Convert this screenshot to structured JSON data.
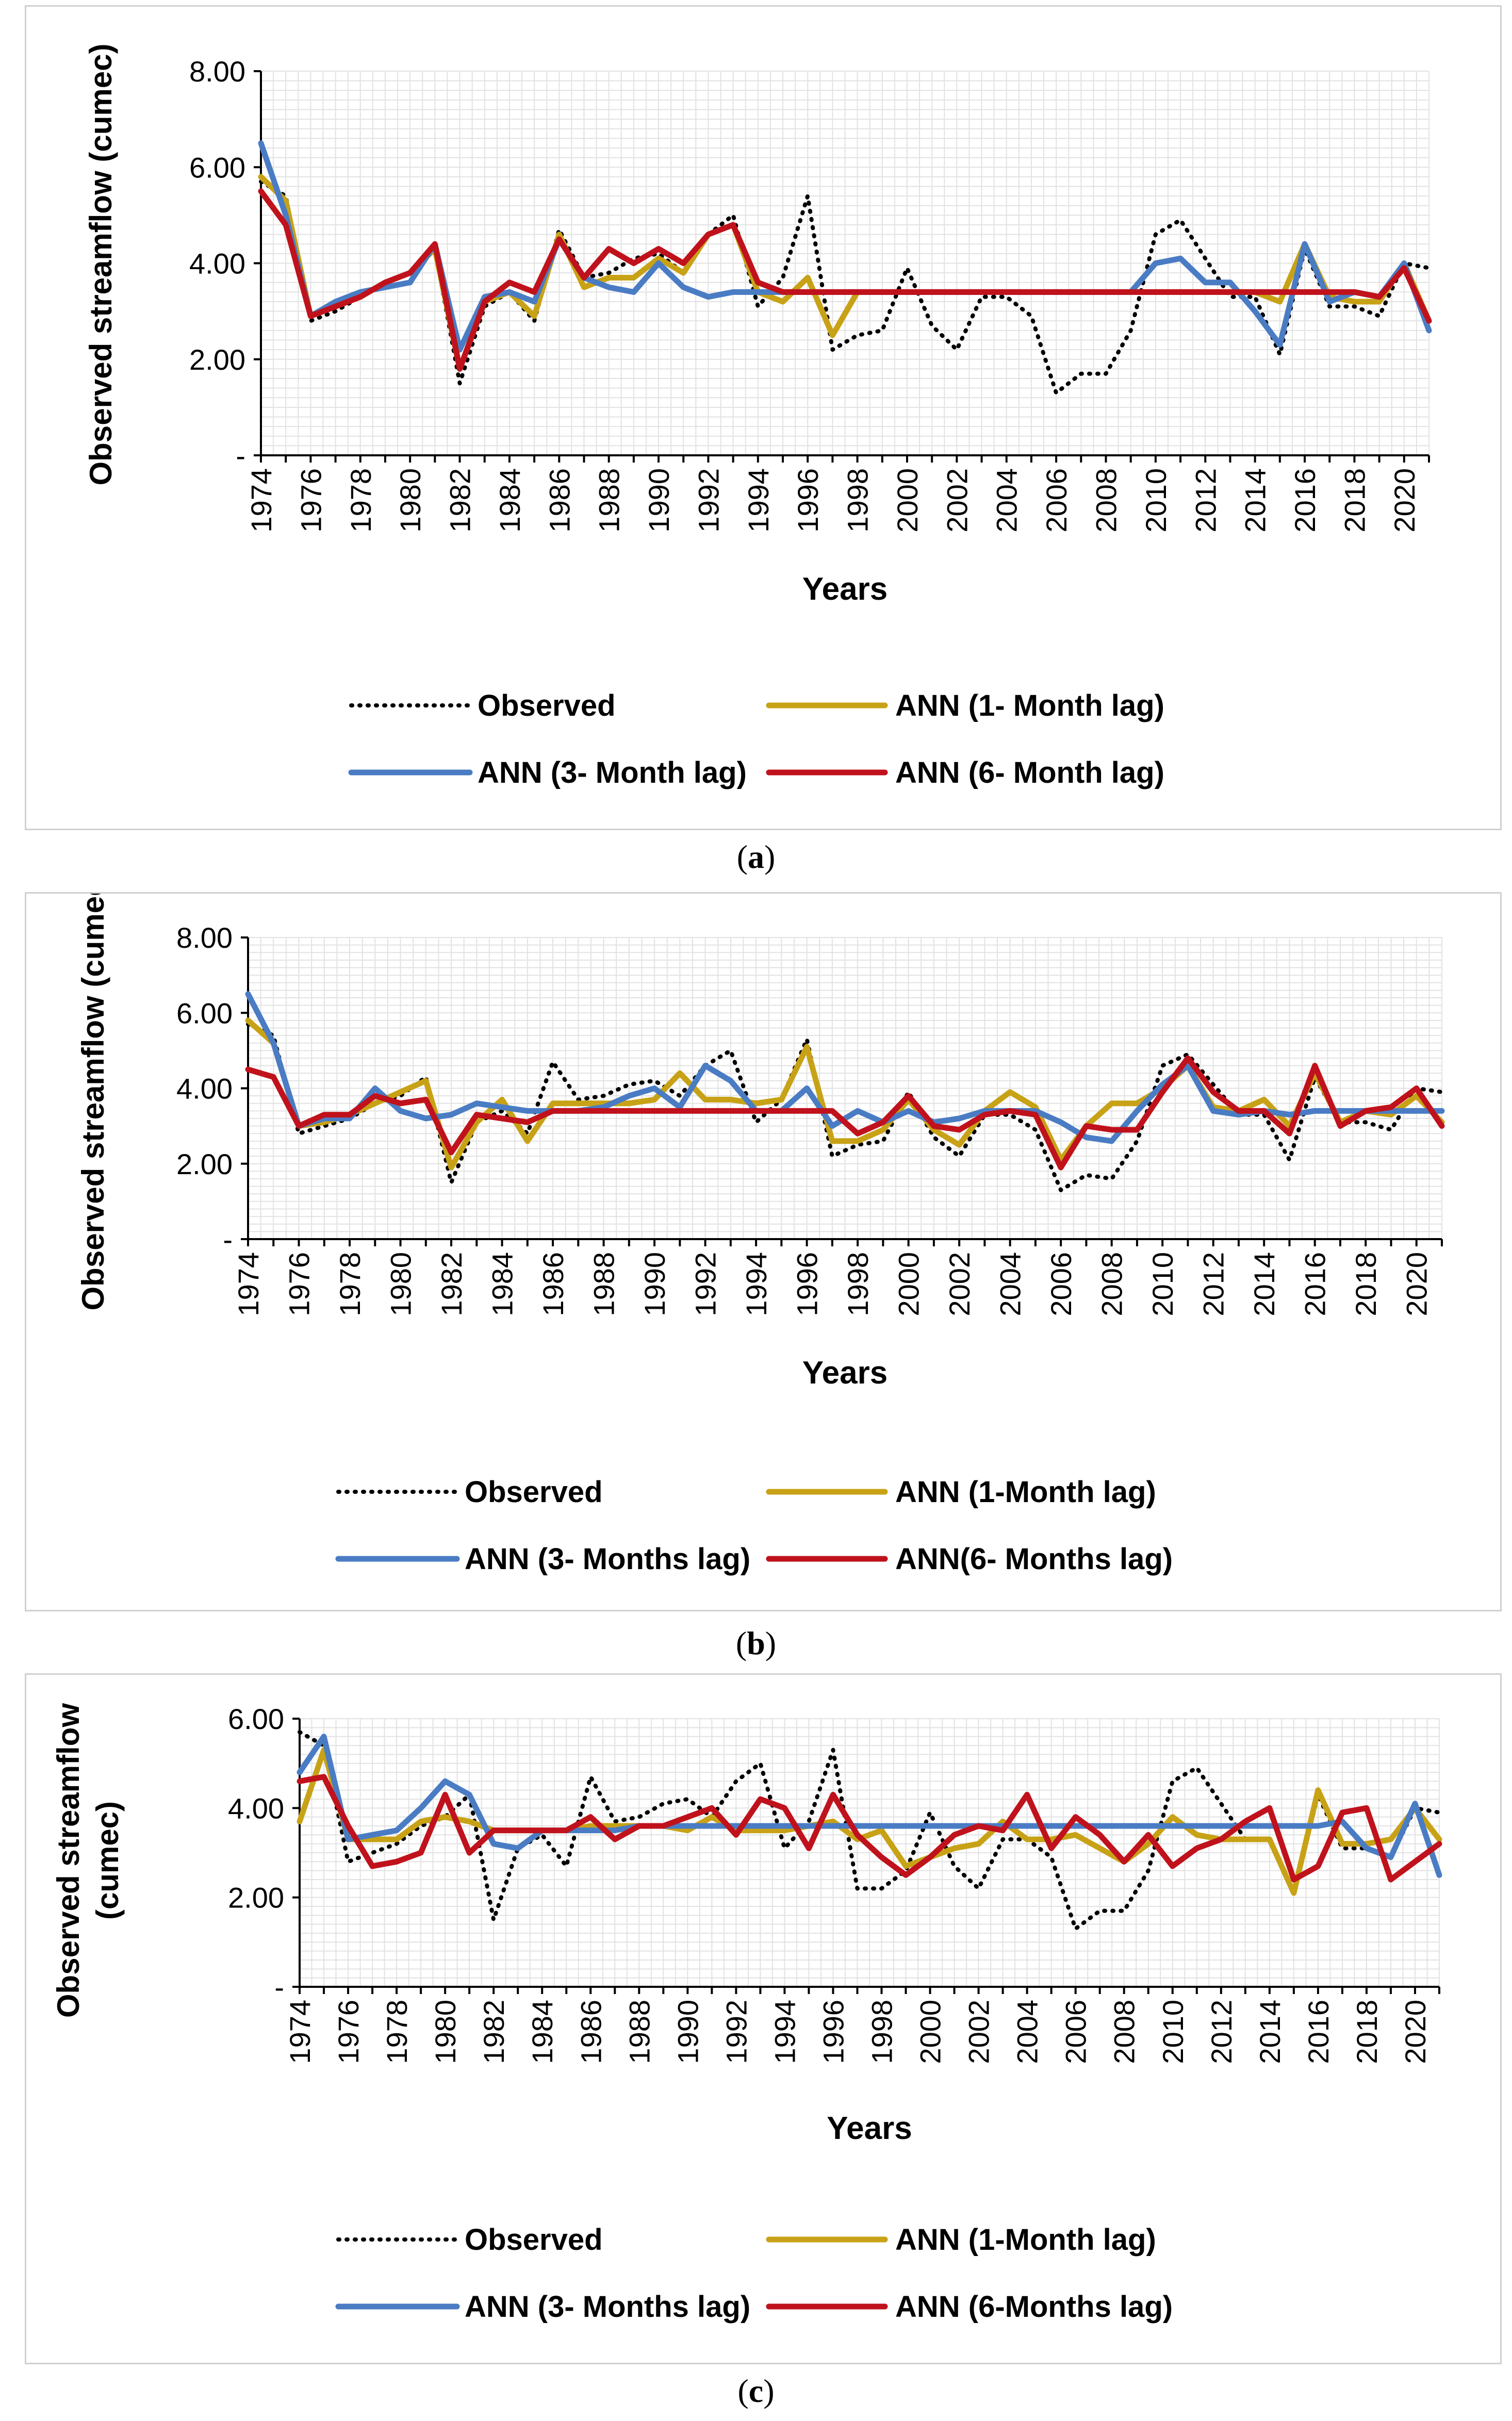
{
  "panels": [
    {
      "caption": {
        "open": "(",
        "letter": "a",
        "close": ")"
      },
      "chart_data": {
        "type": "line",
        "ylabel_lines": [
          "Observed streamflow (cumec)"
        ],
        "xlabel": "Years",
        "ylim": [
          0,
          8
        ],
        "y_ticks": [
          {
            "v": 0,
            "label": "-"
          },
          {
            "v": 2,
            "label": "2.00"
          },
          {
            "v": 4,
            "label": "4.00"
          },
          {
            "v": 6,
            "label": "6.00"
          },
          {
            "v": 8,
            "label": "8.00"
          }
        ],
        "x": [
          1974,
          1975,
          1976,
          1977,
          1978,
          1979,
          1980,
          1981,
          1982,
          1983,
          1984,
          1985,
          1986,
          1987,
          1988,
          1989,
          1990,
          1991,
          1992,
          1993,
          1994,
          1995,
          1996,
          1997,
          1998,
          1999,
          2000,
          2001,
          2002,
          2003,
          2004,
          2005,
          2006,
          2007,
          2008,
          2009,
          2010,
          2011,
          2012,
          2013,
          2014,
          2015,
          2016,
          2017,
          2018,
          2019,
          2020,
          2021
        ],
        "x_tick_labels": [
          "1974",
          "1976",
          "1978",
          "1980",
          "1982",
          "1984",
          "1986",
          "1988",
          "1990",
          "1992",
          "1994",
          "1996",
          "1998",
          "2000",
          "2002",
          "2004",
          "2006",
          "2008",
          "2010",
          "2012",
          "2014",
          "2016",
          "2018",
          "2020"
        ],
        "series": [
          {
            "name": "Observed",
            "color": "#000000",
            "dash": "dot",
            "values": [
              5.7,
              5.4,
              2.8,
              3.0,
              3.3,
              3.6,
              3.8,
              4.3,
              1.5,
              3.1,
              3.4,
              2.8,
              4.7,
              3.7,
              3.8,
              4.1,
              4.2,
              3.8,
              4.6,
              5.0,
              3.1,
              3.7,
              5.4,
              2.2,
              2.5,
              2.6,
              3.9,
              2.7,
              2.2,
              3.3,
              3.3,
              2.9,
              1.3,
              1.7,
              1.7,
              2.6,
              4.6,
              4.9,
              4.1,
              3.3,
              3.3,
              2.1,
              4.3,
              3.1,
              3.1,
              2.9,
              4.0,
              3.9
            ]
          },
          {
            "name": "ANN (1- Month lag)",
            "color": "#c8a216",
            "values": [
              5.8,
              5.3,
              2.9,
              3.1,
              3.3,
              3.6,
              3.8,
              4.3,
              1.8,
              3.2,
              3.4,
              2.9,
              4.6,
              3.5,
              3.7,
              3.7,
              4.1,
              3.8,
              4.6,
              4.8,
              3.4,
              3.2,
              3.7,
              2.5,
              3.4,
              3.4,
              3.4,
              3.4,
              3.4,
              3.4,
              3.4,
              3.4,
              3.4,
              3.4,
              3.4,
              3.4,
              3.4,
              3.4,
              3.4,
              3.4,
              3.4,
              3.2,
              4.4,
              3.3,
              3.2,
              3.2,
              4.0,
              2.8
            ]
          },
          {
            "name": "ANN (3- Month lag)",
            "color": "#4a7cc4",
            "values": [
              6.5,
              5.0,
              2.9,
              3.2,
              3.4,
              3.5,
              3.6,
              4.4,
              2.2,
              3.3,
              3.4,
              3.2,
              4.5,
              3.7,
              3.5,
              3.4,
              4.0,
              3.5,
              3.3,
              3.4,
              3.4,
              3.4,
              3.4,
              3.4,
              3.4,
              3.4,
              3.4,
              3.4,
              3.4,
              3.4,
              3.4,
              3.4,
              3.4,
              3.4,
              3.4,
              3.4,
              4.0,
              4.1,
              3.6,
              3.6,
              3.0,
              2.3,
              4.4,
              3.2,
              3.4,
              3.3,
              4.0,
              2.6
            ]
          },
          {
            "name": "ANN (6- Month lag)",
            "color": "#c0121c",
            "values": [
              5.5,
              4.8,
              2.9,
              3.1,
              3.3,
              3.6,
              3.8,
              4.4,
              1.8,
              3.2,
              3.6,
              3.4,
              4.5,
              3.7,
              4.3,
              4.0,
              4.3,
              4.0,
              4.6,
              4.8,
              3.6,
              3.4,
              3.4,
              3.4,
              3.4,
              3.4,
              3.4,
              3.4,
              3.4,
              3.4,
              3.4,
              3.4,
              3.4,
              3.4,
              3.4,
              3.4,
              3.4,
              3.4,
              3.4,
              3.4,
              3.4,
              3.4,
              3.4,
              3.4,
              3.4,
              3.3,
              3.9,
              2.8
            ]
          }
        ]
      }
    },
    {
      "caption": {
        "open": "(",
        "letter": "b",
        "close": ")"
      },
      "chart_data": {
        "type": "line",
        "ylabel_lines": [
          "Observed streamflow (cumec)"
        ],
        "xlabel": "Years",
        "ylim": [
          0,
          8
        ],
        "y_ticks": [
          {
            "v": 0,
            "label": "-"
          },
          {
            "v": 2,
            "label": "2.00"
          },
          {
            "v": 4,
            "label": "4.00"
          },
          {
            "v": 6,
            "label": "6.00"
          },
          {
            "v": 8,
            "label": "8.00"
          }
        ],
        "x": [
          1974,
          1975,
          1976,
          1977,
          1978,
          1979,
          1980,
          1981,
          1982,
          1983,
          1984,
          1985,
          1986,
          1987,
          1988,
          1989,
          1990,
          1991,
          1992,
          1993,
          1994,
          1995,
          1996,
          1997,
          1998,
          1999,
          2000,
          2001,
          2002,
          2003,
          2004,
          2005,
          2006,
          2007,
          2008,
          2009,
          2010,
          2011,
          2012,
          2013,
          2014,
          2015,
          2016,
          2017,
          2018,
          2019,
          2020,
          2021
        ],
        "x_tick_labels": [
          "1974",
          "1976",
          "1978",
          "1980",
          "1982",
          "1984",
          "1986",
          "1988",
          "1990",
          "1992",
          "1994",
          "1996",
          "1998",
          "2000",
          "2002",
          "2004",
          "2006",
          "2008",
          "2010",
          "2012",
          "2014",
          "2016",
          "2018",
          "2020"
        ],
        "series": [
          {
            "name": "Observed",
            "color": "#000000",
            "dash": "dot",
            "values": [
              5.7,
              5.4,
              2.8,
              3.0,
              3.2,
              3.6,
              3.8,
              4.3,
              1.5,
              3.1,
              3.4,
              2.8,
              4.7,
              3.7,
              3.8,
              4.1,
              4.2,
              3.8,
              4.6,
              5.0,
              3.1,
              3.7,
              5.3,
              2.2,
              2.5,
              2.6,
              3.9,
              2.7,
              2.2,
              3.3,
              3.3,
              2.9,
              1.3,
              1.7,
              1.6,
              2.6,
              4.6,
              4.9,
              4.1,
              3.3,
              3.3,
              2.1,
              4.3,
              3.1,
              3.1,
              2.9,
              4.0,
              3.9
            ]
          },
          {
            "name": "ANN (1-Month lag)",
            "color": "#c8a216",
            "values": [
              5.8,
              5.2,
              3.0,
              3.1,
              3.3,
              3.6,
              3.9,
              4.2,
              1.9,
              3.1,
              3.7,
              2.6,
              3.6,
              3.6,
              3.6,
              3.6,
              3.7,
              4.4,
              3.7,
              3.7,
              3.6,
              3.7,
              5.1,
              2.6,
              2.6,
              2.9,
              3.7,
              2.9,
              2.5,
              3.4,
              3.9,
              3.5,
              2.1,
              3.0,
              3.6,
              3.6,
              4.0,
              4.6,
              3.5,
              3.4,
              3.7,
              3.0,
              4.4,
              3.1,
              3.4,
              3.3,
              3.8,
              3.1
            ]
          },
          {
            "name": "ANN (3- Months lag)",
            "color": "#4a7cc4",
            "values": [
              6.5,
              5.2,
              3.0,
              3.2,
              3.2,
              4.0,
              3.4,
              3.2,
              3.3,
              3.6,
              3.5,
              3.4,
              3.4,
              3.4,
              3.5,
              3.8,
              4.0,
              3.5,
              4.6,
              4.2,
              3.4,
              3.4,
              4.0,
              3.0,
              3.4,
              3.1,
              3.4,
              3.1,
              3.2,
              3.4,
              3.4,
              3.4,
              3.1,
              2.7,
              2.6,
              3.4,
              4.1,
              4.6,
              3.4,
              3.3,
              3.4,
              3.3,
              3.4,
              3.4,
              3.4,
              3.4,
              3.4,
              3.4
            ]
          },
          {
            "name": "ANN(6- Months lag)",
            "color": "#c0121c",
            "values": [
              4.5,
              4.3,
              3.0,
              3.3,
              3.3,
              3.8,
              3.6,
              3.7,
              2.3,
              3.3,
              3.2,
              3.1,
              3.4,
              3.4,
              3.4,
              3.4,
              3.4,
              3.4,
              3.4,
              3.4,
              3.4,
              3.4,
              3.4,
              3.4,
              2.8,
              3.1,
              3.8,
              3.0,
              2.9,
              3.3,
              3.4,
              3.3,
              1.9,
              3.0,
              2.9,
              2.9,
              3.9,
              4.8,
              3.9,
              3.4,
              3.4,
              2.8,
              4.6,
              3.0,
              3.4,
              3.5,
              4.0,
              3.0
            ]
          }
        ]
      }
    },
    {
      "caption": {
        "open": "(",
        "letter": "c",
        "close": ")"
      },
      "chart_data": {
        "type": "line",
        "ylabel_lines": [
          "Observed streamflow",
          "(cumec)"
        ],
        "xlabel": "Years",
        "ylim": [
          0,
          6
        ],
        "y_ticks": [
          {
            "v": 0,
            "label": "-"
          },
          {
            "v": 2,
            "label": "2.00"
          },
          {
            "v": 4,
            "label": "4.00"
          },
          {
            "v": 6,
            "label": "6.00"
          }
        ],
        "x": [
          1974,
          1975,
          1976,
          1977,
          1978,
          1979,
          1980,
          1981,
          1982,
          1983,
          1984,
          1985,
          1986,
          1987,
          1988,
          1989,
          1990,
          1991,
          1992,
          1993,
          1994,
          1995,
          1996,
          1997,
          1998,
          1999,
          2000,
          2001,
          2002,
          2003,
          2004,
          2005,
          2006,
          2007,
          2008,
          2009,
          2010,
          2011,
          2012,
          2013,
          2014,
          2015,
          2016,
          2017,
          2018,
          2019,
          2020,
          2021
        ],
        "x_tick_labels": [
          "1974",
          "1976",
          "1978",
          "1980",
          "1982",
          "1984",
          "1986",
          "1988",
          "1990",
          "1992",
          "1994",
          "1996",
          "1998",
          "2000",
          "2002",
          "2004",
          "2006",
          "2008",
          "2010",
          "2012",
          "2014",
          "2016",
          "2018",
          "2020"
        ],
        "series": [
          {
            "name": "Observed",
            "color": "#000000",
            "dash": "dot",
            "values": [
              5.7,
              5.4,
              2.8,
              3.0,
              3.2,
              3.6,
              3.8,
              4.3,
              1.5,
              3.1,
              3.4,
              2.7,
              4.7,
              3.7,
              3.8,
              4.1,
              4.2,
              3.8,
              4.6,
              5.0,
              3.1,
              3.7,
              5.3,
              2.2,
              2.2,
              2.6,
              3.9,
              2.7,
              2.2,
              3.3,
              3.3,
              2.9,
              1.3,
              1.7,
              1.7,
              2.6,
              4.6,
              4.9,
              4.1,
              3.3,
              3.3,
              2.1,
              4.3,
              3.1,
              3.1,
              2.9,
              4.0,
              3.9
            ]
          },
          {
            "name": "ANN (1-Month lag)",
            "color": "#c8a216",
            "values": [
              3.7,
              5.3,
              3.3,
              3.3,
              3.3,
              3.7,
              3.8,
              3.7,
              3.5,
              3.5,
              3.5,
              3.5,
              3.6,
              3.6,
              3.6,
              3.6,
              3.5,
              3.8,
              3.5,
              3.5,
              3.5,
              3.6,
              3.7,
              3.3,
              3.5,
              2.7,
              2.9,
              3.1,
              3.2,
              3.7,
              3.3,
              3.3,
              3.4,
              3.1,
              2.8,
              3.2,
              3.8,
              3.4,
              3.3,
              3.3,
              3.3,
              2.1,
              4.4,
              3.2,
              3.2,
              3.3,
              4.0,
              3.3
            ]
          },
          {
            "name": "ANN (3- Months lag)",
            "color": "#4a7cc4",
            "values": [
              4.8,
              5.6,
              3.3,
              3.4,
              3.5,
              4.0,
              4.6,
              4.3,
              3.2,
              3.1,
              3.5,
              3.5,
              3.5,
              3.5,
              3.6,
              3.6,
              3.6,
              3.6,
              3.6,
              3.6,
              3.6,
              3.6,
              3.6,
              3.6,
              3.6,
              3.6,
              3.6,
              3.6,
              3.6,
              3.6,
              3.6,
              3.6,
              3.6,
              3.6,
              3.6,
              3.6,
              3.6,
              3.6,
              3.6,
              3.6,
              3.6,
              3.6,
              3.6,
              3.7,
              3.1,
              2.9,
              4.1,
              2.5
            ]
          },
          {
            "name": "ANN (6-Months lag)",
            "color": "#c0121c",
            "values": [
              4.6,
              4.7,
              3.6,
              2.7,
              2.8,
              3.0,
              4.3,
              3.0,
              3.5,
              3.5,
              3.5,
              3.5,
              3.8,
              3.3,
              3.6,
              3.6,
              3.8,
              4.0,
              3.4,
              4.2,
              4.0,
              3.1,
              4.3,
              3.4,
              2.9,
              2.5,
              2.9,
              3.4,
              3.6,
              3.5,
              4.3,
              3.1,
              3.8,
              3.4,
              2.8,
              3.4,
              2.7,
              3.1,
              3.3,
              3.7,
              4.0,
              2.4,
              2.7,
              3.9,
              4.0,
              2.4,
              2.8,
              3.2
            ]
          }
        ]
      }
    }
  ]
}
